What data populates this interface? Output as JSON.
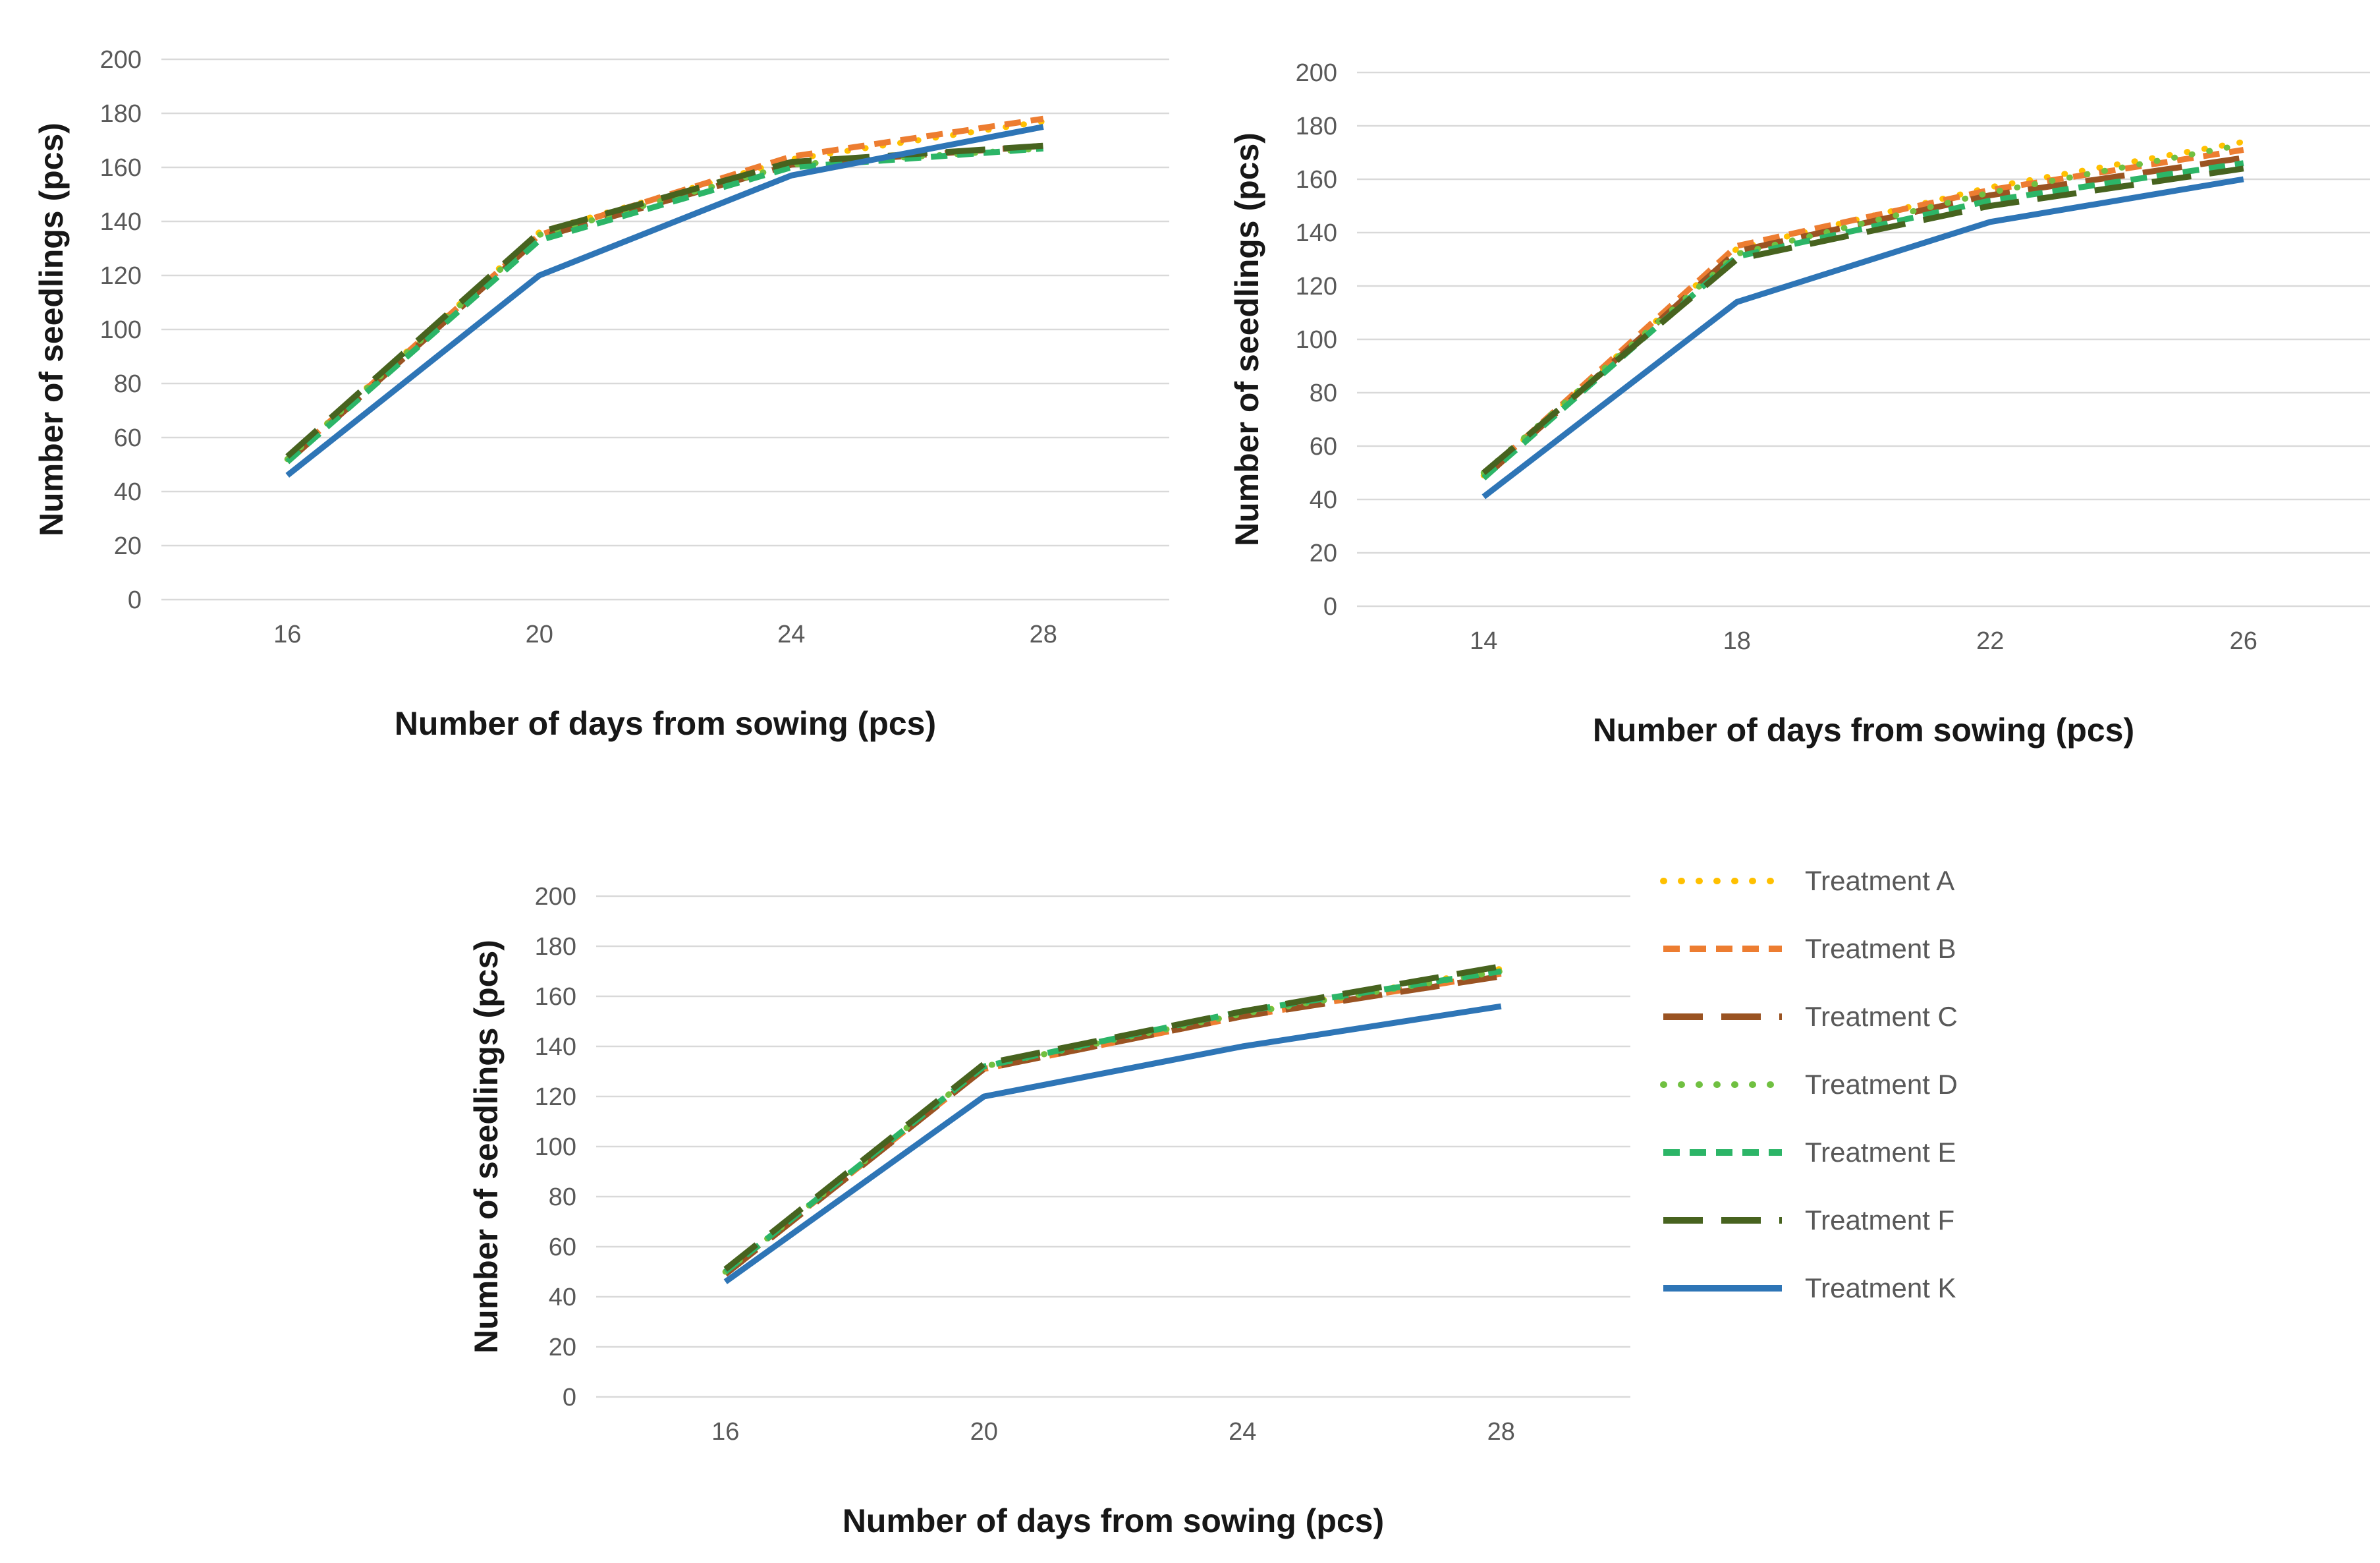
{
  "figure": {
    "background": "#ffffff",
    "grid_color": "#d9d9d9",
    "tick_color": "#595959",
    "axis_title_color": "#171717"
  },
  "chart_data": [
    {
      "id": "top-left",
      "type": "line",
      "title": "",
      "xlabel": "Number of days from sowing (pcs)",
      "ylabel": "Number of seedlings (pcs)",
      "categories": [
        16,
        20,
        24,
        28
      ],
      "ylim": [
        0,
        200
      ],
      "ytick_step": 20,
      "grid": true,
      "legend_position": "none",
      "series": [
        {
          "name": "Treatment A",
          "color": "#FFC000",
          "style": "dot",
          "values": [
            52,
            136,
            163,
            177
          ]
        },
        {
          "name": "Treatment B",
          "color": "#ED7D31",
          "style": "dash",
          "values": [
            52,
            135,
            164,
            178
          ]
        },
        {
          "name": "Treatment C",
          "color": "#9A5322",
          "style": "longdash",
          "values": [
            51,
            134,
            161,
            168
          ]
        },
        {
          "name": "Treatment D",
          "color": "#70C041",
          "style": "dot",
          "values": [
            52,
            135,
            161,
            167
          ]
        },
        {
          "name": "Treatment E",
          "color": "#2CB567",
          "style": "dash",
          "values": [
            51,
            133,
            160,
            167
          ]
        },
        {
          "name": "Treatment F",
          "color": "#47631F",
          "style": "longdash",
          "values": [
            53,
            136,
            162,
            168
          ]
        },
        {
          "name": "Treatment K",
          "color": "#2E75B6",
          "style": "solid",
          "values": [
            46,
            120,
            157,
            175
          ]
        }
      ]
    },
    {
      "id": "top-right",
      "type": "line",
      "title": "",
      "xlabel": "Number of days from sowing (pcs)",
      "ylabel": "Number of seedlings (pcs)",
      "categories": [
        14,
        18,
        22,
        26
      ],
      "ylim": [
        0,
        200
      ],
      "ytick_step": 20,
      "grid": true,
      "legend_position": "none",
      "series": [
        {
          "name": "Treatment A",
          "color": "#FFC000",
          "style": "dot",
          "values": [
            49,
            134,
            157,
            174
          ]
        },
        {
          "name": "Treatment B",
          "color": "#ED7D31",
          "style": "dash",
          "values": [
            49,
            135,
            156,
            171
          ]
        },
        {
          "name": "Treatment C",
          "color": "#9A5322",
          "style": "longdash",
          "values": [
            48,
            133,
            154,
            168
          ]
        },
        {
          "name": "Treatment D",
          "color": "#70C041",
          "style": "dot",
          "values": [
            50,
            132,
            155,
            173
          ]
        },
        {
          "name": "Treatment E",
          "color": "#2CB567",
          "style": "dash",
          "values": [
            48,
            131,
            152,
            166
          ]
        },
        {
          "name": "Treatment F",
          "color": "#47631F",
          "style": "longdash",
          "values": [
            50,
            130,
            150,
            164
          ]
        },
        {
          "name": "Treatment K",
          "color": "#2E75B6",
          "style": "solid",
          "values": [
            41,
            114,
            144,
            160
          ]
        }
      ]
    },
    {
      "id": "bottom",
      "type": "line",
      "title": "",
      "xlabel": "Number of days from sowing (pcs)",
      "ylabel": "Number of seedlings (pcs)",
      "categories": [
        16,
        20,
        24,
        28
      ],
      "ylim": [
        0,
        200
      ],
      "ytick_step": 20,
      "grid": true,
      "legend_position": "right",
      "series": [
        {
          "name": "Treatment A",
          "color": "#FFC000",
          "style": "dot",
          "values": [
            50,
            132,
            153,
            171
          ]
        },
        {
          "name": "Treatment B",
          "color": "#ED7D31",
          "style": "dash",
          "values": [
            50,
            131,
            152,
            169
          ]
        },
        {
          "name": "Treatment C",
          "color": "#9A5322",
          "style": "longdash",
          "values": [
            49,
            131,
            152,
            168
          ]
        },
        {
          "name": "Treatment D",
          "color": "#70C041",
          "style": "dot",
          "values": [
            50,
            132,
            153,
            170
          ]
        },
        {
          "name": "Treatment E",
          "color": "#2CB567",
          "style": "dash",
          "values": [
            50,
            132,
            154,
            170
          ]
        },
        {
          "name": "Treatment F",
          "color": "#47631F",
          "style": "longdash",
          "values": [
            51,
            133,
            154,
            172
          ]
        },
        {
          "name": "Treatment K",
          "color": "#2E75B6",
          "style": "solid",
          "values": [
            46,
            120,
            140,
            156
          ]
        }
      ]
    }
  ],
  "legend": {
    "items": [
      {
        "label": "Treatment A",
        "color": "#FFC000",
        "style": "dot"
      },
      {
        "label": "Treatment B",
        "color": "#ED7D31",
        "style": "dash"
      },
      {
        "label": "Treatment C",
        "color": "#9A5322",
        "style": "longdash"
      },
      {
        "label": "Treatment D",
        "color": "#70C041",
        "style": "dot"
      },
      {
        "label": "Treatment E",
        "color": "#2CB567",
        "style": "dash"
      },
      {
        "label": "Treatment F",
        "color": "#47631F",
        "style": "longdash"
      },
      {
        "label": "Treatment K",
        "color": "#2E75B6",
        "style": "solid"
      }
    ]
  }
}
